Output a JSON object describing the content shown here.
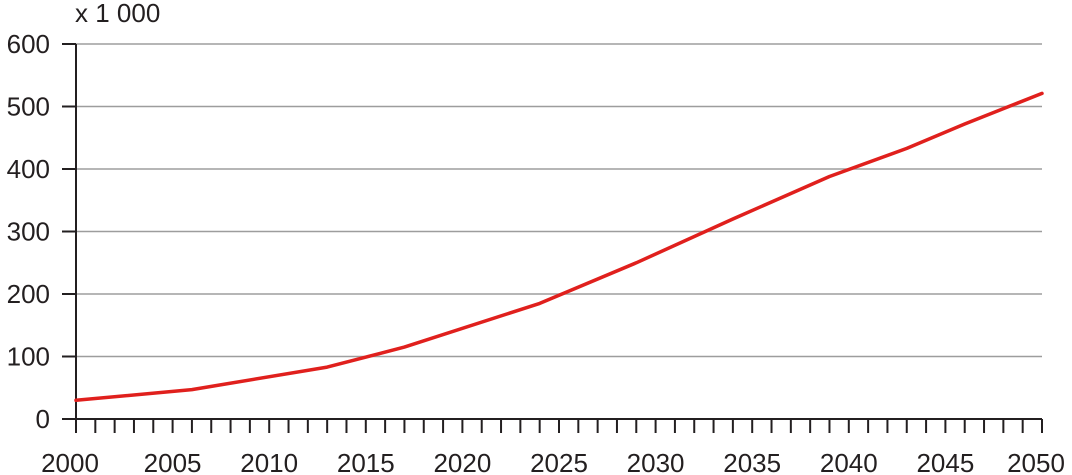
{
  "chart_data": {
    "type": "line",
    "unit_label": "x 1 000",
    "x": [
      2000,
      2006,
      2013,
      2017,
      2024,
      2029,
      2034,
      2039,
      2043,
      2046,
      2050
    ],
    "series": [
      {
        "values": [
          30,
          47,
          83,
          115,
          185,
          250,
          320,
          388,
          433,
          472,
          521
        ],
        "color": "#e0201d"
      }
    ],
    "xlim": [
      2000,
      2050
    ],
    "ylim": [
      0,
      600
    ],
    "x_ticks": [
      2000,
      2005,
      2010,
      2015,
      2020,
      2025,
      2030,
      2035,
      2040,
      2045,
      2050
    ],
    "y_ticks": [
      0,
      100,
      200,
      300,
      400,
      500,
      600
    ],
    "x_minor_step": 1,
    "grid": "horizontal",
    "legend": "none"
  }
}
